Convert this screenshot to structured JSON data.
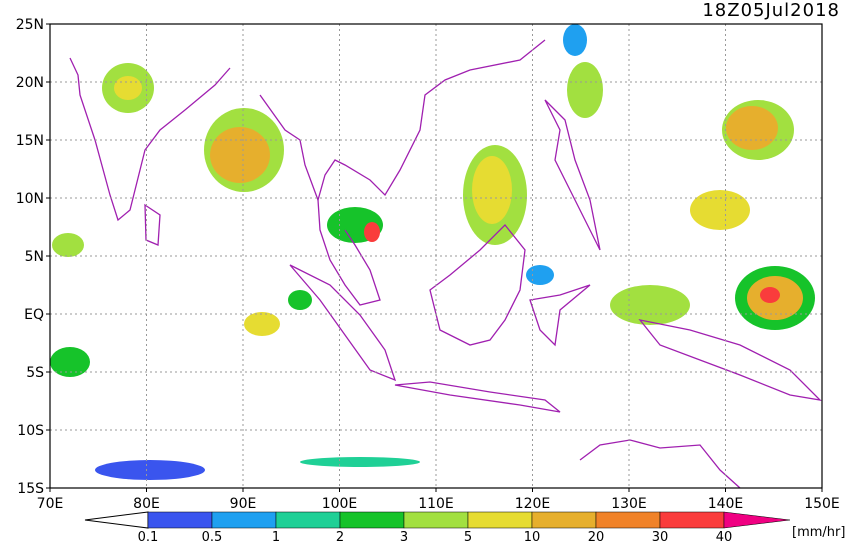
{
  "title": "18Z05Jul2018",
  "lat_labels": [
    "25N",
    "20N",
    "15N",
    "10N",
    "5N",
    "EQ",
    "5S",
    "10S",
    "15S"
  ],
  "lon_labels": [
    "70E",
    "80E",
    "90E",
    "100E",
    "110E",
    "120E",
    "130E",
    "140E",
    "150E"
  ],
  "colorbar": {
    "labels": [
      0.1,
      0.5,
      1,
      2,
      3,
      5,
      10,
      20,
      30,
      40
    ],
    "colors": [
      "#3a55ee",
      "#1fa0f0",
      "#1fd096",
      "#16c32a",
      "#a2e040",
      "#e6dc32",
      "#e6af2d",
      "#f08228",
      "#fa3c3c",
      "#f00082"
    ],
    "unit": "[mm/hr]"
  }
}
